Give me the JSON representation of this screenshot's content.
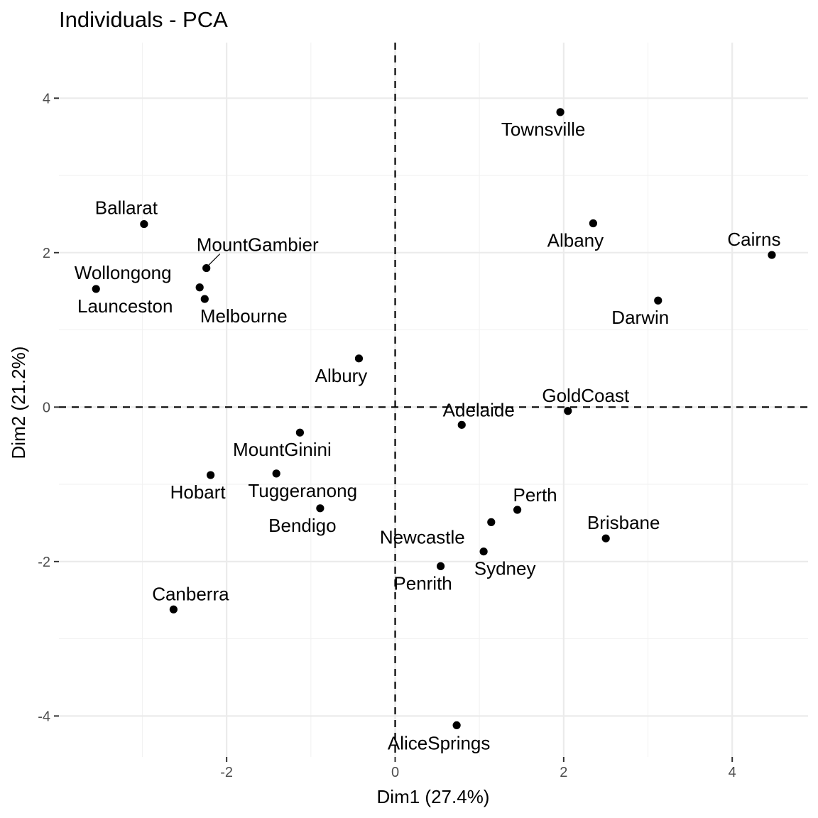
{
  "chart_data": {
    "type": "scatter",
    "title": "Individuals - PCA",
    "xlabel": "Dim1 (27.4%)",
    "ylabel": "Dim2 (21.2%)",
    "xlim": [
      -3.99,
      4.9
    ],
    "ylim": [
      -4.53,
      4.72
    ],
    "xticks": [
      -2,
      0,
      2,
      4
    ],
    "yticks": [
      -4,
      -2,
      0,
      2,
      4
    ],
    "grid": true,
    "reference_lines": {
      "x": 0,
      "y": 0
    },
    "point_color": "#000000",
    "points": [
      {
        "label": "Townsville",
        "x": 1.96,
        "y": 3.82
      },
      {
        "label": "Ballarat",
        "x": -2.98,
        "y": 2.37
      },
      {
        "label": "Albany",
        "x": 2.35,
        "y": 2.38
      },
      {
        "label": "Cairns",
        "x": 4.47,
        "y": 1.97
      },
      {
        "label": "MountGambier",
        "x": -2.24,
        "y": 1.8
      },
      {
        "label": "Wollongong",
        "x": -2.32,
        "y": 1.55
      },
      {
        "label": "Launceston",
        "x": -3.55,
        "y": 1.53
      },
      {
        "label": "Melbourne",
        "x": -2.26,
        "y": 1.4
      },
      {
        "label": "Darwin",
        "x": 3.12,
        "y": 1.38
      },
      {
        "label": "Albury",
        "x": -0.43,
        "y": 0.63
      },
      {
        "label": "GoldCoast",
        "x": 2.05,
        "y": -0.05
      },
      {
        "label": "Adelaide",
        "x": 0.79,
        "y": -0.23
      },
      {
        "label": "MountGinini",
        "x": -1.13,
        "y": -0.33
      },
      {
        "label": "Hobart",
        "x": -2.19,
        "y": -0.88
      },
      {
        "label": "Tuggeranong",
        "x": -1.41,
        "y": -0.86
      },
      {
        "label": "Bendigo",
        "x": -0.89,
        "y": -1.31
      },
      {
        "label": "Perth",
        "x": 1.45,
        "y": -1.33
      },
      {
        "label": "Newcastle",
        "x": 1.14,
        "y": -1.49
      },
      {
        "label": "Brisbane",
        "x": 2.5,
        "y": -1.7
      },
      {
        "label": "Sydney",
        "x": 1.05,
        "y": -1.87
      },
      {
        "label": "Penrith",
        "x": 0.54,
        "y": -2.06
      },
      {
        "label": "Canberra",
        "x": -2.63,
        "y": -2.62
      },
      {
        "label": "AliceSprings",
        "x": 0.73,
        "y": -4.12
      }
    ]
  }
}
